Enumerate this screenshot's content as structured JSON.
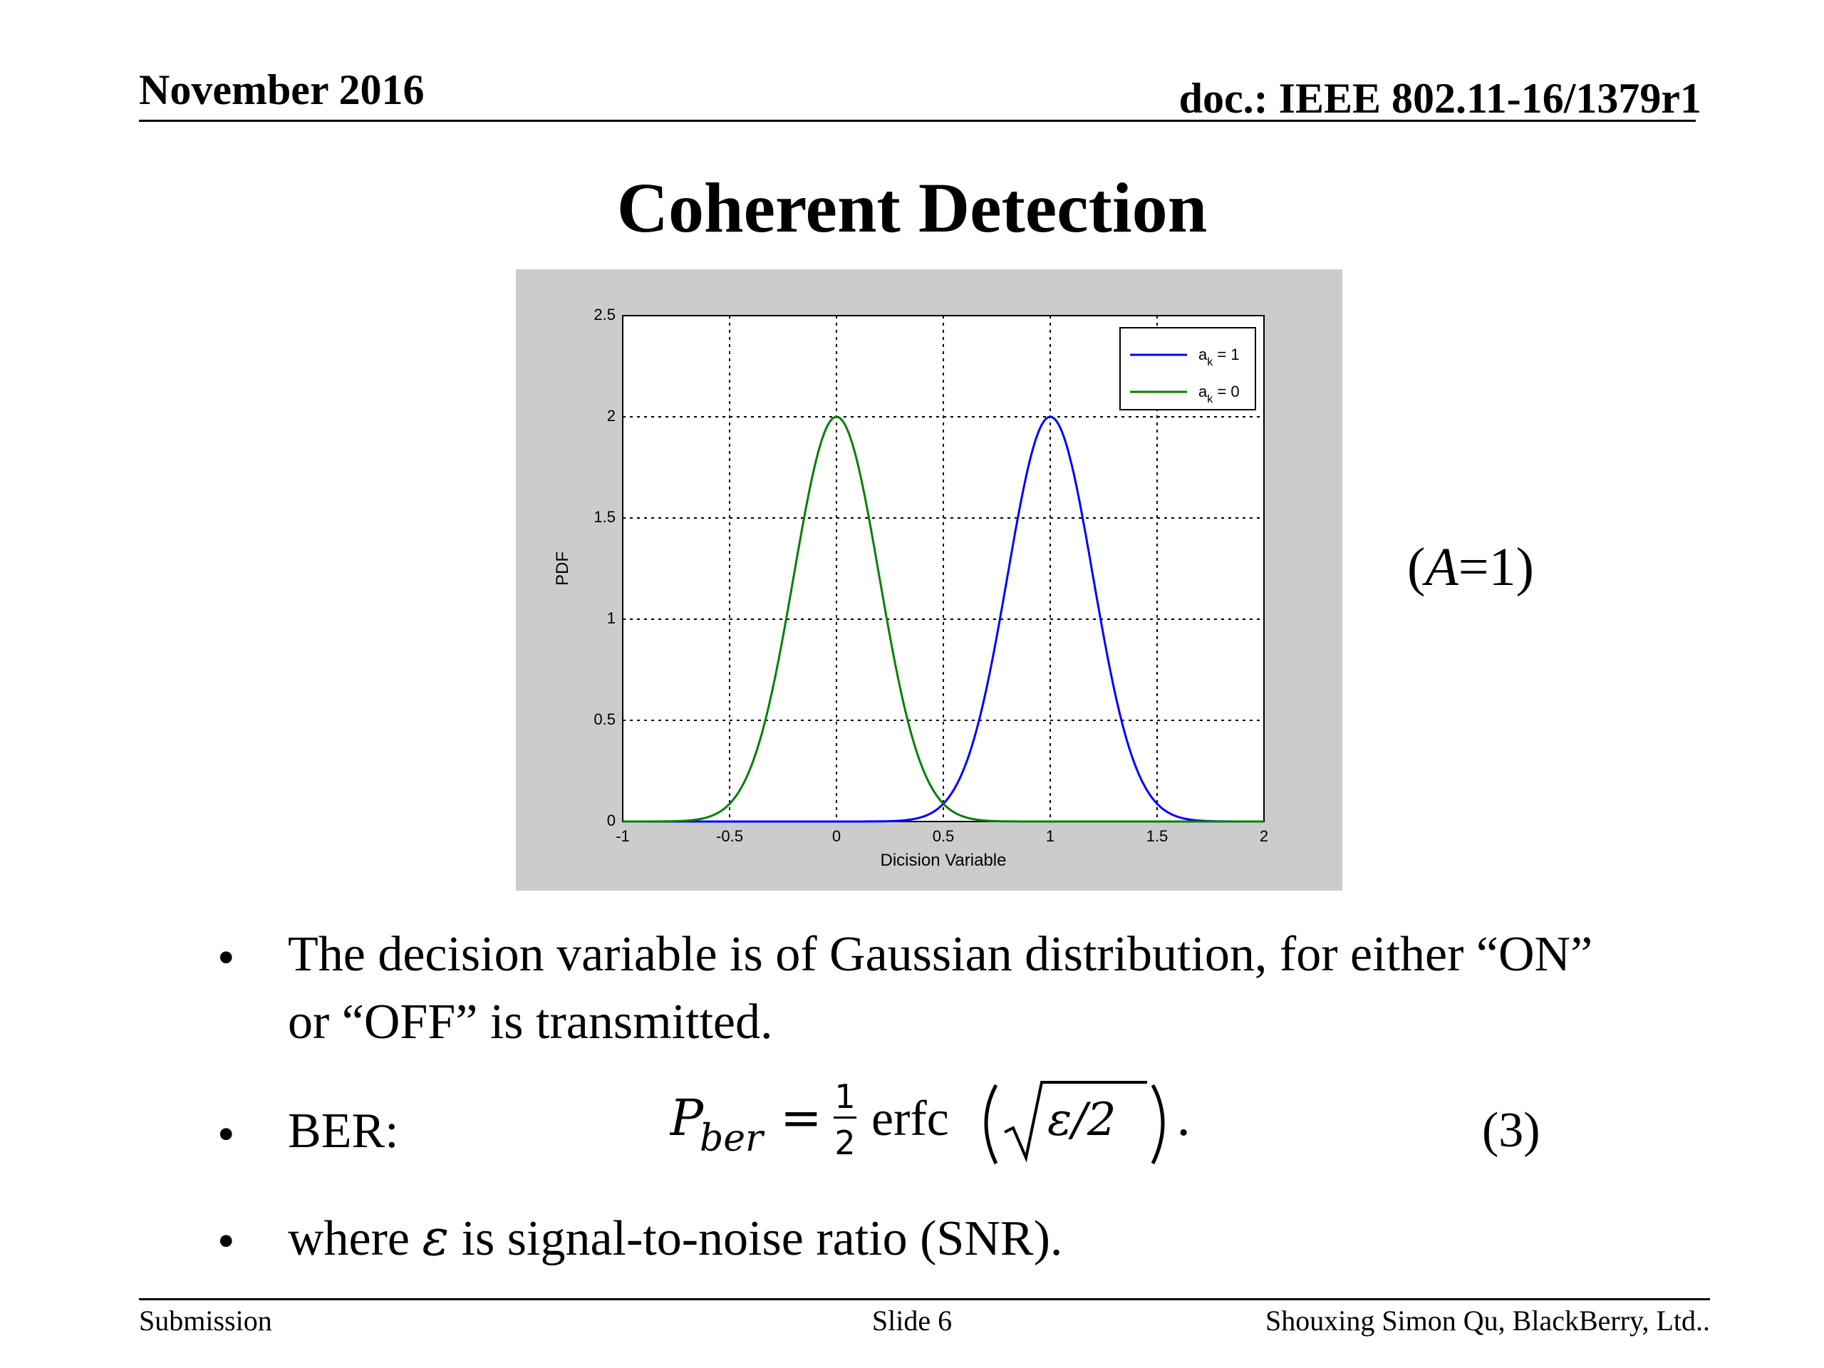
{
  "header": {
    "date": "November 2016",
    "doc": "doc.: IEEE 802.11-16/1379r1"
  },
  "title": "Coherent Detection",
  "param_note": {
    "open": "(",
    "var": "A",
    "rest": "=1)"
  },
  "bullets": [
    {
      "text": "The decision variable is of Gaussian distribution, for either “ON” or “OFF” is transmitted."
    },
    {
      "label": "BER:"
    },
    {
      "pre": "where ",
      "var": "ε",
      "post": " is signal-to-noise ratio (SNR)."
    }
  ],
  "formula": {
    "lhs_var": "P",
    "lhs_sub": "ber",
    "equals": "=",
    "frac_num": "1",
    "frac_den": "2",
    "func": "erfc",
    "arg": "ε/2",
    "end": ".",
    "number": "(3)"
  },
  "footer": {
    "left": "Submission",
    "center": "Slide 6",
    "right": "Shouxing Simon Qu, BlackBerry, Ltd.."
  },
  "chart_data": {
    "type": "line",
    "xlabel": "Dicision Variable",
    "ylabel": "PDF",
    "xlim": [
      -1,
      2
    ],
    "ylim": [
      0,
      2.5
    ],
    "xticks": [
      "-1",
      "-0.5",
      "0",
      "0.5",
      "1",
      "1.5",
      "2"
    ],
    "yticks": [
      "0",
      "0.5",
      "1",
      "1.5",
      "2",
      "2.5"
    ],
    "grid": true,
    "legend_position": "top-right",
    "series": [
      {
        "name": "a_k = 1",
        "legend_base": "a",
        "legend_sub": "k",
        "legend_rest": " = 1",
        "color": "#0000ff",
        "mean": 1,
        "std": 0.2,
        "peak": 2
      },
      {
        "name": "a_k = 0",
        "legend_base": "a",
        "legend_sub": "k",
        "legend_rest": " = 0",
        "color": "#008000",
        "mean": 0,
        "std": 0.2,
        "peak": 2
      }
    ],
    "background": "#cccccc"
  }
}
